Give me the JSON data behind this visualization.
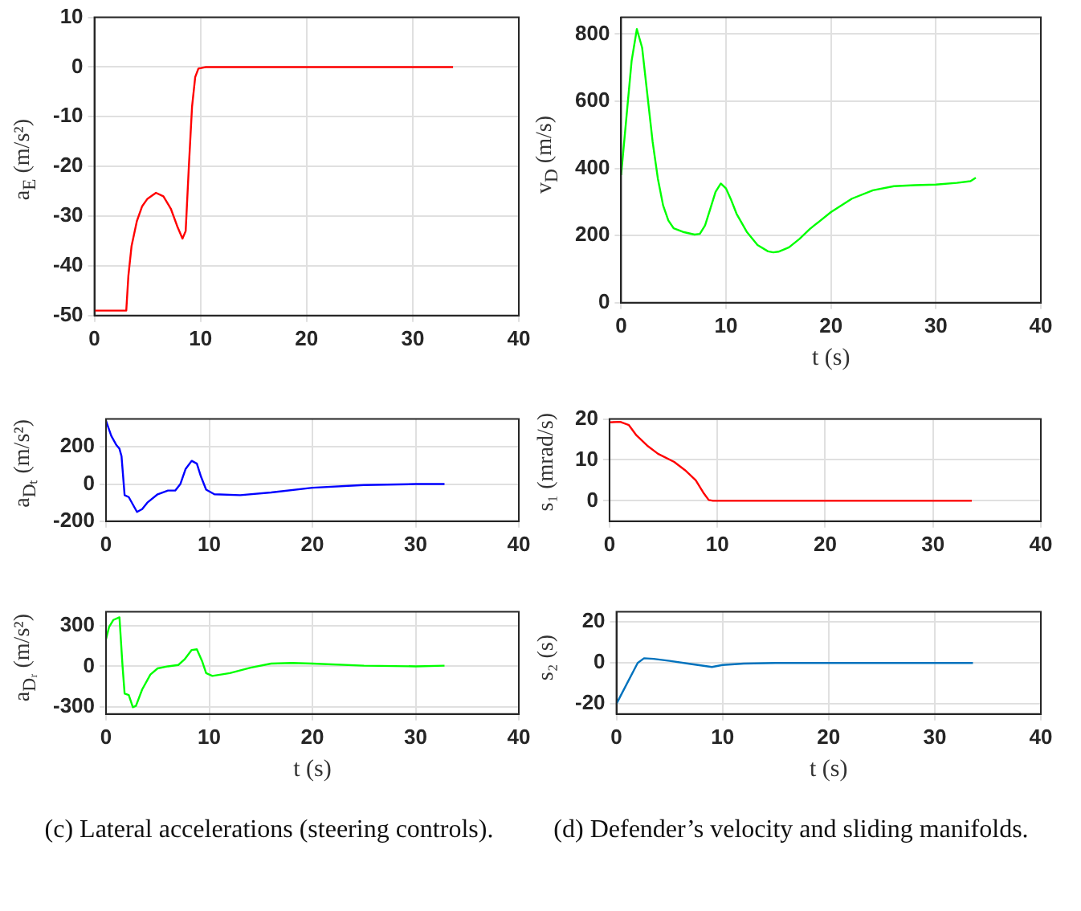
{
  "chart_data": [
    {
      "type": "line",
      "ylabel": "a$_{E}$ (m/s²)",
      "xlim": [
        0,
        40
      ],
      "xticks": [
        0,
        10,
        20,
        30,
        40
      ],
      "ylim": [
        -50,
        10
      ],
      "yticks": [
        -50,
        -40,
        -30,
        -20,
        -10,
        0,
        10
      ],
      "grid": true,
      "marker": "none",
      "line_style": "solid",
      "series": [
        {
          "color": "#ff0000",
          "x": [
            0,
            3,
            3.2,
            3.5,
            4,
            4.5,
            5,
            5.8,
            6.5,
            7.2,
            7.8,
            8.3,
            8.6,
            8.9,
            9.2,
            9.5,
            9.8,
            10.5,
            33.8
          ],
          "values": [
            -49,
            -49,
            -42,
            -36,
            -31,
            -28,
            -26.5,
            -25.3,
            -26,
            -28.5,
            -32,
            -34.5,
            -33,
            -20,
            -8,
            -2,
            -0.3,
            0,
            0
          ]
        }
      ]
    },
    {
      "type": "line",
      "xlabel": "t (s)",
      "ylabel": "v$_{D}$ (m/s)",
      "xlim": [
        0,
        40
      ],
      "xticks": [
        0,
        10,
        20,
        30,
        40
      ],
      "ylim": [
        0,
        850
      ],
      "yticks": [
        0,
        200,
        400,
        600,
        800
      ],
      "grid": true,
      "marker": "none",
      "line_style": "solid",
      "series": [
        {
          "color": "#00ff00",
          "x": [
            0,
            0.5,
            1,
            1.5,
            2,
            2.5,
            3,
            3.5,
            4,
            4.5,
            5,
            6,
            7,
            7.5,
            8,
            8.5,
            9,
            9.5,
            10,
            10.5,
            11,
            12,
            13,
            14,
            14.5,
            15,
            16,
            17,
            18,
            20,
            22,
            24,
            26,
            28,
            30,
            32,
            33.3,
            33.8
          ],
          "values": [
            380,
            550,
            720,
            815,
            760,
            620,
            480,
            370,
            290,
            245,
            222,
            210,
            203,
            205,
            230,
            280,
            330,
            355,
            340,
            305,
            265,
            210,
            172,
            153,
            150,
            152,
            165,
            190,
            220,
            270,
            310,
            335,
            347,
            350,
            352,
            357,
            362,
            372
          ]
        }
      ]
    },
    {
      "type": "line",
      "ylabel": "a$_{Dₜ}$ (m/s²)",
      "xlim": [
        0,
        40
      ],
      "xticks": [
        0,
        10,
        20,
        30,
        40
      ],
      "ylim": [
        -200,
        350
      ],
      "yticks": [
        -200,
        0,
        200
      ],
      "grid": true,
      "marker": "none",
      "line_style": "solid",
      "series": [
        {
          "color": "#0000ff",
          "x": [
            0,
            0.5,
            1,
            1.3,
            1.5,
            1.8,
            2.2,
            2.6,
            3,
            3.5,
            4,
            5,
            6,
            6.7,
            7.2,
            7.7,
            8.3,
            8.8,
            9.2,
            9.7,
            10.5,
            13,
            16,
            20,
            25,
            30,
            32.8
          ],
          "values": [
            340,
            260,
            210,
            190,
            150,
            -60,
            -70,
            -110,
            -150,
            -135,
            -100,
            -55,
            -35,
            -35,
            0,
            80,
            125,
            110,
            40,
            -30,
            -55,
            -60,
            -45,
            -20,
            -5,
            0,
            0
          ]
        }
      ]
    },
    {
      "type": "line",
      "ylabel": "s₁ (mrad/s)",
      "xlim": [
        0,
        40
      ],
      "xticks": [
        0,
        10,
        20,
        30,
        40
      ],
      "ylim": [
        -5,
        20
      ],
      "yticks": [
        0,
        10,
        20
      ],
      "grid": true,
      "marker": "none",
      "line_style": "solid",
      "series": [
        {
          "color": "#ff0000",
          "x": [
            0,
            1,
            1.8,
            2.5,
            3.5,
            4.5,
            6,
            7,
            8,
            8.7,
            9.2,
            9.6,
            33.6
          ],
          "values": [
            19.2,
            19.3,
            18.5,
            16,
            13.5,
            11.5,
            9.5,
            7.5,
            5,
            2,
            0.2,
            0,
            0
          ]
        }
      ]
    },
    {
      "type": "line",
      "xlabel": "t (s)",
      "ylabel": "a$_{Dᵣ}$ (m/s²)",
      "xlim": [
        0,
        40
      ],
      "xticks": [
        0,
        10,
        20,
        30,
        40
      ],
      "ylim": [
        -350,
        400
      ],
      "yticks": [
        -300,
        0,
        300
      ],
      "grid": true,
      "marker": "none",
      "line_style": "solid",
      "annotations": [
        "(c) Lateral accelerations (steering controls)."
      ],
      "series": [
        {
          "color": "#00ff00",
          "x": [
            0,
            0.3,
            0.7,
            1.3,
            1.6,
            1.8,
            2.2,
            2.6,
            2.9,
            3.5,
            4.3,
            5,
            6,
            7,
            7.6,
            8.3,
            8.8,
            9.3,
            9.7,
            10.3,
            12,
            14,
            16,
            18,
            20,
            25,
            30,
            32.8
          ],
          "values": [
            200,
            290,
            340,
            360,
            0,
            -200,
            -210,
            -300,
            -290,
            -170,
            -60,
            -15,
            0,
            10,
            50,
            120,
            125,
            40,
            -50,
            -70,
            -50,
            -10,
            20,
            25,
            20,
            5,
            0,
            5
          ]
        }
      ]
    },
    {
      "type": "line",
      "xlabel": "t (s)",
      "ylabel": "s₂ (s)",
      "xlim": [
        0,
        40
      ],
      "xticks": [
        0,
        10,
        20,
        30,
        40
      ],
      "ylim": [
        -25,
        25
      ],
      "yticks": [
        -20,
        0,
        20
      ],
      "grid": true,
      "marker": "none",
      "line_style": "solid",
      "annotations": [
        "(d) Defender’s velocity and sliding manifolds."
      ],
      "series": [
        {
          "color": "#0072bd",
          "x": [
            0,
            1,
            2,
            2.6,
            3.5,
            5,
            7,
            9,
            10,
            12,
            15,
            33.6
          ],
          "values": [
            -20,
            -10,
            0,
            2.3,
            2,
            1,
            -0.5,
            -2,
            -1,
            -0.3,
            0,
            0
          ]
        }
      ]
    }
  ]
}
